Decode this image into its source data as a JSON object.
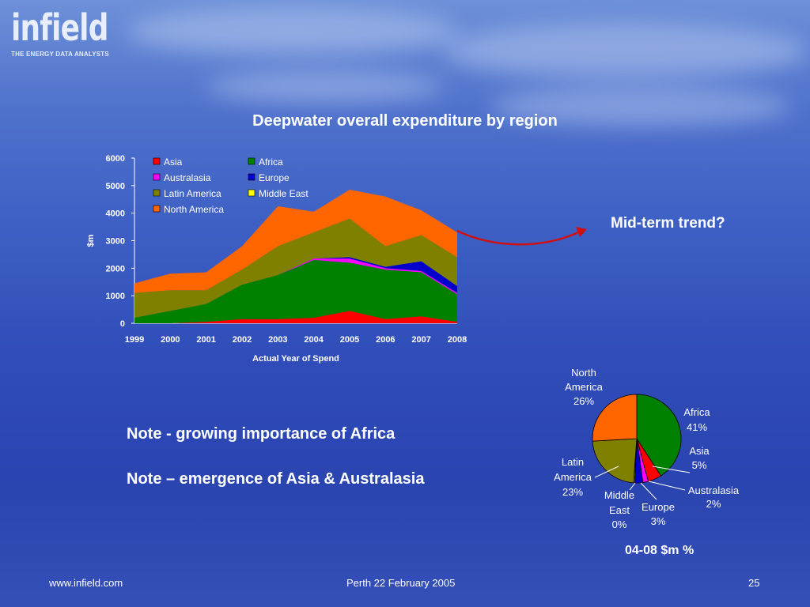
{
  "brand": {
    "name": "infield",
    "tagline": "THE ENERGY DATA ANALYSTS"
  },
  "slide": {
    "title": "Deepwater overall expenditure by region",
    "callout": "Mid-term trend?",
    "note1": "Note - growing importance of Africa",
    "note2": "Note – emergence of Asia & Australasia",
    "pie_title": "04-08 $m %",
    "footer_left": "www.infield.com",
    "footer_center": "Perth 22 February 2005",
    "page_number": "25"
  },
  "chart_data": [
    {
      "type": "area",
      "stacked": true,
      "xlabel": "Actual Year of Spend",
      "ylabel": "$m",
      "ylim": [
        0,
        6000
      ],
      "yticks": [
        0,
        1000,
        2000,
        3000,
        4000,
        5000,
        6000
      ],
      "x": [
        "1999",
        "2000",
        "2001",
        "2002",
        "2003",
        "2004",
        "2005",
        "2006",
        "2007",
        "2008"
      ],
      "legend_position": "top-left",
      "series": [
        {
          "name": "Asia",
          "color": "#ff0000",
          "values": [
            0,
            0,
            50,
            150,
            150,
            200,
            450,
            150,
            250,
            50
          ]
        },
        {
          "name": "Africa",
          "color": "#008000",
          "values": [
            200,
            450,
            650,
            1250,
            1600,
            2100,
            1750,
            1800,
            1600,
            1000
          ]
        },
        {
          "name": "Australasia",
          "color": "#ff00ff",
          "values": [
            0,
            0,
            0,
            0,
            0,
            50,
            150,
            50,
            50,
            50
          ]
        },
        {
          "name": "Europe",
          "color": "#0000cc",
          "values": [
            0,
            0,
            0,
            0,
            0,
            0,
            50,
            50,
            350,
            250
          ]
        },
        {
          "name": "Latin America",
          "color": "#808000",
          "values": [
            900,
            750,
            500,
            550,
            1050,
            950,
            1400,
            750,
            950,
            1050
          ]
        },
        {
          "name": "Middle East",
          "color": "#ffff00",
          "values": [
            0,
            0,
            0,
            0,
            0,
            0,
            0,
            0,
            0,
            0
          ]
        },
        {
          "name": "North America",
          "color": "#ff6600",
          "values": [
            350,
            600,
            650,
            850,
            1450,
            750,
            1050,
            1800,
            900,
            900
          ]
        }
      ]
    },
    {
      "type": "pie",
      "title": "04-08 $m %",
      "slices": [
        {
          "name": "Africa",
          "label1": "Africa",
          "label2": "41%",
          "value": 41,
          "color": "#008000"
        },
        {
          "name": "Asia",
          "label1": "Asia",
          "label2": "5%",
          "value": 5,
          "color": "#ff0000"
        },
        {
          "name": "Australasia",
          "label1": "Australasia",
          "label2": "2%",
          "value": 2,
          "color": "#ff00ff"
        },
        {
          "name": "Europe",
          "label1": "Europe",
          "label2": "3%",
          "value": 3,
          "color": "#0000cc"
        },
        {
          "name": "Middle East",
          "label1": "Middle East",
          "label2": "0%",
          "value": 0.4,
          "color": "#ffff00"
        },
        {
          "name": "Latin America",
          "label1": "Latin America",
          "label2": "23%",
          "value": 23,
          "color": "#808000"
        },
        {
          "name": "North America",
          "label1": "North America",
          "label2": "26%",
          "value": 26,
          "color": "#ff6600"
        }
      ]
    }
  ]
}
